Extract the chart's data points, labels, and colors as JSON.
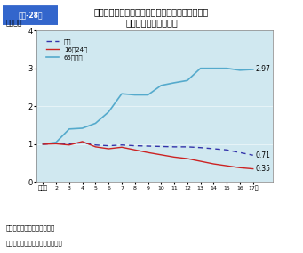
{
  "title_box": "第１-28図",
  "title": "自動車（第１当事者）運転者の若者・高齢者別死\n亡事故発生件数の推移",
  "ylabel": "（指数）",
  "xlabel_year_label": "年",
  "x_labels": [
    "平成元",
    "2",
    "3",
    "4",
    "5",
    "6",
    "7",
    "8",
    "9",
    "10",
    "11",
    "12",
    "13",
    "14",
    "15",
    "16",
    "17年"
  ],
  "x_values": [
    1,
    2,
    3,
    4,
    5,
    6,
    7,
    8,
    9,
    10,
    11,
    12,
    13,
    14,
    15,
    16,
    17
  ],
  "total": [
    1.0,
    1.02,
    1.01,
    1.04,
    0.98,
    0.96,
    0.98,
    0.96,
    0.95,
    0.94,
    0.93,
    0.93,
    0.91,
    0.88,
    0.85,
    0.78,
    0.71
  ],
  "young": [
    1.0,
    1.01,
    0.98,
    1.07,
    0.93,
    0.88,
    0.92,
    0.85,
    0.78,
    0.72,
    0.66,
    0.62,
    0.55,
    0.48,
    0.43,
    0.38,
    0.35
  ],
  "elderly": [
    1.0,
    1.05,
    1.4,
    1.42,
    1.55,
    1.85,
    2.33,
    2.3,
    2.3,
    2.55,
    2.62,
    2.68,
    3.0,
    3.0,
    3.0,
    2.95,
    2.97
  ],
  "total_color": "#3333aa",
  "young_color": "#cc2222",
  "elderly_color": "#55aacc",
  "bg_color": "#d0e8f0",
  "ylim": [
    0,
    4
  ],
  "yticks": [
    0,
    1,
    2,
    3,
    4
  ],
  "legend_total": "総数",
  "legend_young": "16～24歳",
  "legend_elderly": "65歳以上",
  "end_label_total": "0.71",
  "end_label_young": "0.35",
  "end_label_elderly": "2.97",
  "note1": "注　１　警察庁資料による。",
  "note2": "　　２　平成元年を１とした指数"
}
